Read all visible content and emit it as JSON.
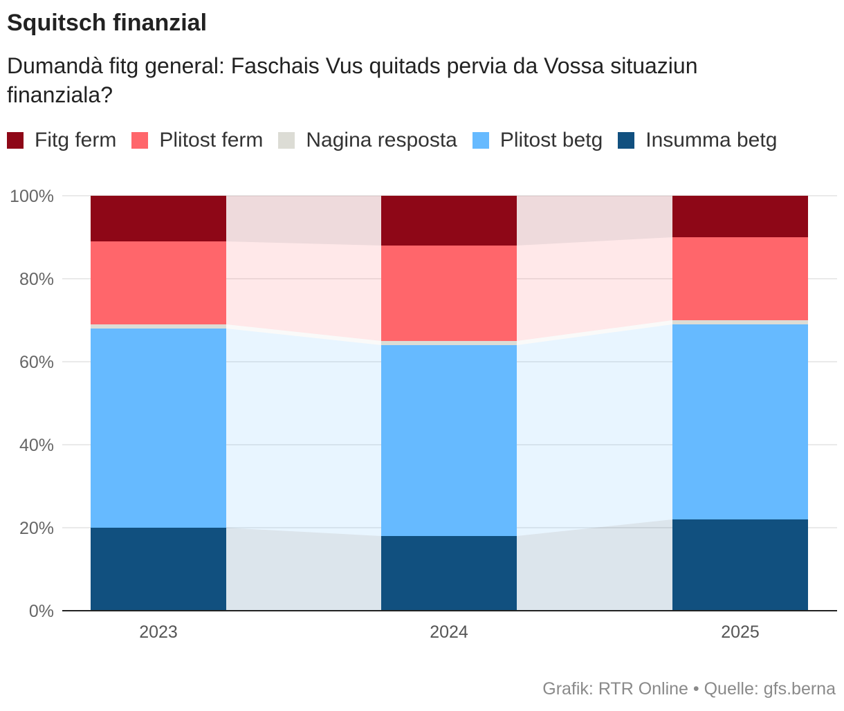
{
  "title": "Squitsch finanzial",
  "subtitle": "Dumandà fitg general: Faschais Vus quitads pervia da Vossa situaziun finanziala?",
  "footer": "Grafik: RTR Online • Quelle: gfs.berna",
  "chart_data": {
    "type": "bar",
    "stacked": true,
    "categories": [
      "2023",
      "2024",
      "2025"
    ],
    "series": [
      {
        "name": "Insumma betg",
        "color": "#11507f",
        "values": [
          20,
          18,
          22
        ]
      },
      {
        "name": "Plitost betg",
        "color": "#66baff",
        "values": [
          48,
          46,
          47
        ]
      },
      {
        "name": "Nagina resposta",
        "color": "#dcdcd5",
        "values": [
          1,
          1,
          1
        ]
      },
      {
        "name": "Plitost ferm",
        "color": "#ff666b",
        "values": [
          20,
          23,
          20
        ]
      },
      {
        "name": "Fitg ferm",
        "color": "#8e0717",
        "values": [
          11,
          12,
          10
        ]
      }
    ],
    "legend_order": [
      "Fitg ferm",
      "Plitost ferm",
      "Nagina resposta",
      "Plitost betg",
      "Insumma betg"
    ],
    "yticks": [
      0,
      20,
      40,
      60,
      80,
      100
    ],
    "ytick_labels": [
      "0%",
      "20%",
      "40%",
      "60%",
      "80%",
      "100%"
    ],
    "ylim": [
      0,
      100
    ],
    "grid": true,
    "legend_position": "top-left"
  }
}
